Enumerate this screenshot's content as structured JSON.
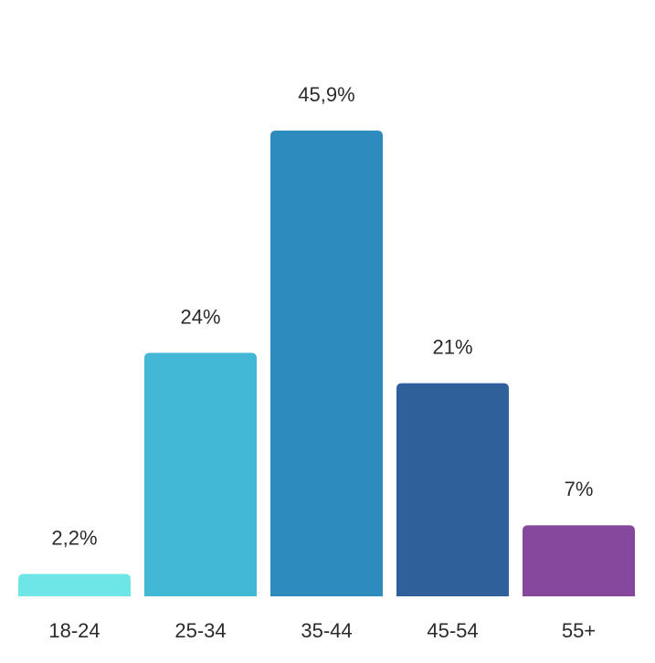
{
  "chart_data": {
    "type": "bar",
    "categories": [
      "18-24",
      "25-34",
      "35-44",
      "45-54",
      "55+"
    ],
    "values": [
      2.2,
      24,
      45.9,
      21,
      7
    ],
    "data_labels": [
      "2,2%",
      "24%",
      "45,9%",
      "21%",
      "7%"
    ],
    "colors": [
      "#6ee6e8",
      "#43b8d6",
      "#2d8cbb",
      "#2f6099",
      "#86489d"
    ],
    "title": "",
    "xlabel": "",
    "ylabel": "",
    "ylim": [
      0,
      50
    ],
    "grid": false,
    "legend": "none"
  }
}
